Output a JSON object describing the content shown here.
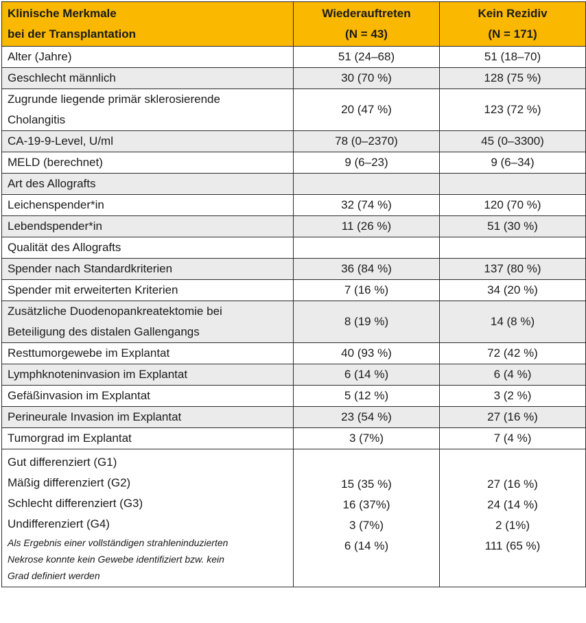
{
  "table": {
    "header": {
      "label_lines": [
        "Klinische Merkmale",
        "bei der Transplantation"
      ],
      "col2_lines": [
        "Wiederauftreten",
        "(N = 43)"
      ],
      "col3_lines": [
        "Kein Rezidiv",
        "(N = 171)"
      ]
    },
    "rows": [
      {
        "label": "Alter (Jahre)",
        "v1": "51 (24–68)",
        "v2": "51 (18–70)"
      },
      {
        "label": "Geschlecht männlich",
        "v1": "30 (70 %)",
        "v2": "128 (75 %)"
      },
      {
        "label_lines": [
          "Zugrunde liegende primär sklerosierende",
          "Cholangitis"
        ],
        "v1": "20 (47 %)",
        "v2": "123 (72 %)"
      },
      {
        "label": "CA-19-9-Level, U/ml",
        "v1": "78 (0–2370)",
        "v2": "45 (0–3300)"
      },
      {
        "label": "MELD (berechnet)",
        "v1": "9 (6–23)",
        "v2": "9 (6–34)"
      },
      {
        "label": "Art des Allografts",
        "v1": "",
        "v2": ""
      },
      {
        "label": "Leichenspender*in",
        "v1": "32 (74 %)",
        "v2": "120 (70 %)"
      },
      {
        "label": "Lebendspender*in",
        "v1": "11 (26 %)",
        "v2": "51 (30 %)"
      },
      {
        "label": "Qualität des Allografts",
        "v1": "",
        "v2": ""
      },
      {
        "label": "Spender nach Standardkriterien",
        "v1": "36 (84 %)",
        "v2": "137 (80 %)"
      },
      {
        "label": "Spender mit erweiterten Kriterien",
        "v1": "7 (16 %)",
        "v2": "34 (20 %)"
      },
      {
        "label_lines": [
          "Zusätzliche Duodenopankreatektomie bei",
          "Beteiligung des distalen Gallengangs"
        ],
        "v1": "8 (19 %)",
        "v2": "14 (8 %)"
      },
      {
        "label": "Resttumorgewebe im Explantat",
        "v1": "40 (93 %)",
        "v2": "72 (42 %)"
      },
      {
        "label": "Lymphknoteninvasion im Explantat",
        "v1": "6 (14 %)",
        "v2": "6 (4 %)"
      },
      {
        "label": "Gefäßinvasion im Explantat",
        "v1": "5 (12 %)",
        "v2": "3 (2 %)"
      },
      {
        "label": "Perineurale Invasion im Explantat",
        "v1": "23 (54 %)",
        "v2": "27 (16 %)"
      },
      {
        "label": "Tumorgrad im Explantat",
        "v1": "3 (7%)",
        "v2": "7 (4 %)"
      }
    ],
    "grade_block": {
      "labels": [
        "Gut differenziert (G1)",
        "Mäßig differenziert (G2)",
        "Schlecht differenziert (G3)",
        "Undifferenziert (G4)"
      ],
      "note_lines": [
        "Als Ergebnis einer vollständigen strahleninduzierten",
        "Nekrose konnte kein Gewebe identifiziert bzw. kein",
        "Grad definiert werden"
      ],
      "v1": [
        "15 (35 %)",
        "16 (37%)",
        "3 (7%)",
        "6 (14 %)"
      ],
      "v2": [
        "27 (16 %)",
        "24 (14 %)",
        "2 (1%)",
        "111 (65 %)"
      ]
    }
  },
  "colors": {
    "header_bg": "#fbb800",
    "shade_bg": "#ebebeb",
    "border": "#2b2b2b"
  }
}
